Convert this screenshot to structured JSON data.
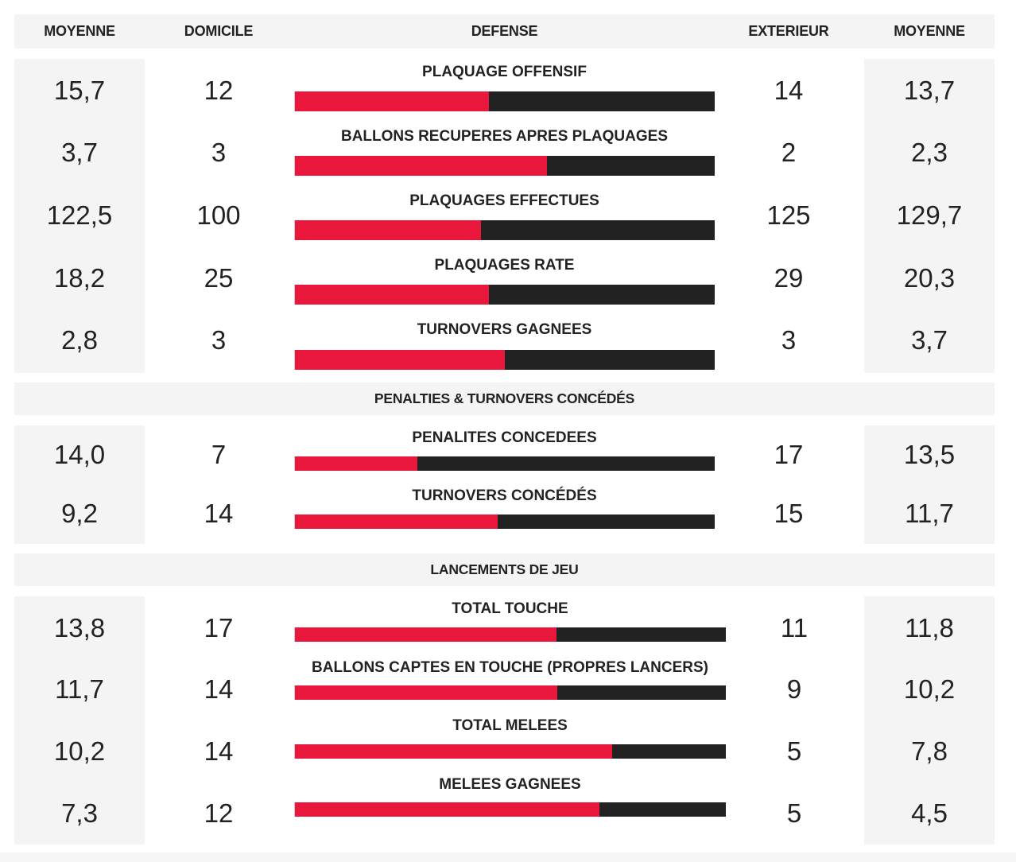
{
  "header": {
    "avg_left": "MOYENNE",
    "home": "DOMICILE",
    "category": "DEFENSE",
    "away": "EXTERIEUR",
    "avg_right": "MOYENNE"
  },
  "colors": {
    "home_bar": "#e8173b",
    "away_bar": "#222222",
    "panel": "#f4f4f4"
  },
  "sections": [
    {
      "title": "",
      "rows": [
        {
          "label": "PLAQUAGE OFFENSIF",
          "avg_home": "15,7",
          "home": "12",
          "away": "14",
          "avg_away": "13,7",
          "home_share": 0.462
        },
        {
          "label": "BALLONS RECUPERES APRES PLAQUAGES",
          "avg_home": "3,7",
          "home": "3",
          "away": "2",
          "avg_away": "2,3",
          "home_share": 0.6
        },
        {
          "label": "PLAQUAGES EFFECTUES",
          "avg_home": "122,5",
          "home": "100",
          "away": "125",
          "avg_away": "129,7",
          "home_share": 0.444
        },
        {
          "label": "PLAQUAGES RATE",
          "avg_home": "18,2",
          "home": "25",
          "away": "29",
          "avg_away": "20,3",
          "home_share": 0.463
        },
        {
          "label": "TURNOVERS GAGNEES",
          "avg_home": "2,8",
          "home": "3",
          "away": "3",
          "avg_away": "3,7",
          "home_share": 0.5
        }
      ]
    },
    {
      "title": "PENALTIES & TURNOVERS CONCÉDÉS",
      "rows": [
        {
          "label": "PENALITES CONCEDEES",
          "avg_home": "14,0",
          "home": "7",
          "away": "17",
          "avg_away": "13,5",
          "home_share": 0.292
        },
        {
          "label": "TURNOVERS CONCÉDÉS",
          "avg_home": "9,2",
          "home": "14",
          "away": "15",
          "avg_away": "11,7",
          "home_share": 0.483
        }
      ]
    },
    {
      "title": "LANCEMENTS DE JEU",
      "rows": [
        {
          "label": "TOTAL TOUCHE",
          "avg_home": "13,8",
          "home": "17",
          "away": "11",
          "avg_away": "11,8",
          "home_share": 0.607
        },
        {
          "label": "BALLONS CAPTES EN TOUCHE (PROPRES LANCERS)",
          "avg_home": "11,7",
          "home": "14",
          "away": "9",
          "avg_away": "10,2",
          "home_share": 0.609
        },
        {
          "label": "TOTAL MELEES",
          "avg_home": "10,2",
          "home": "14",
          "away": "5",
          "avg_away": "7,8",
          "home_share": 0.737
        },
        {
          "label": "MELEES GAGNEES",
          "avg_home": "7,3",
          "home": "12",
          "away": "5",
          "avg_away": "4,5",
          "home_share": 0.706
        }
      ]
    }
  ]
}
